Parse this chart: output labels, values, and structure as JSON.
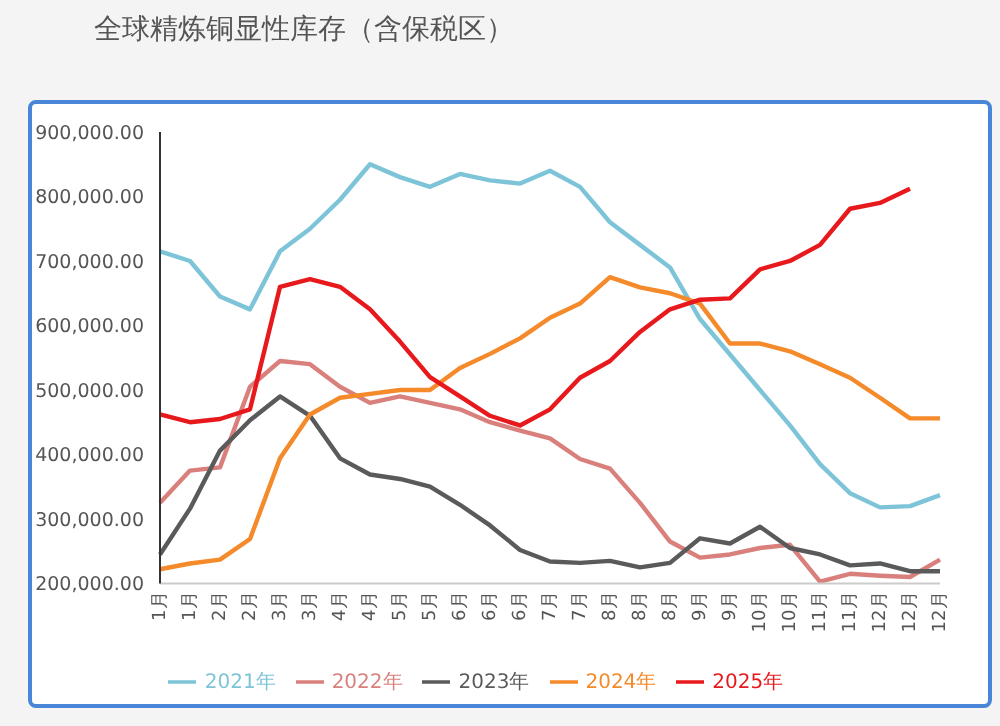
{
  "chart_data": {
    "type": "line",
    "title": "全球精炼铜显性库存（含保税区）",
    "categories": [
      "1月",
      "1月",
      "2月",
      "2月",
      "3月",
      "3月",
      "4月",
      "4月",
      "5月",
      "5月",
      "6月",
      "6月",
      "6月",
      "7月",
      "7月",
      "8月",
      "8月",
      "8月",
      "9月",
      "9月",
      "10月",
      "10月",
      "11月",
      "11月",
      "12月",
      "12月",
      "12月"
    ],
    "series": [
      {
        "name": "2021年",
        "color": "#7ec4d8",
        "values": [
          715000,
          700000,
          645000,
          625000,
          715000,
          750000,
          795000,
          850000,
          830000,
          815000,
          835000,
          825000,
          820000,
          840000,
          815000,
          760000,
          725000,
          690000,
          610000,
          555000,
          500000,
          445000,
          385000,
          340000,
          318000,
          320000,
          337000
        ]
      },
      {
        "name": "2022年",
        "color": "#d9807c",
        "values": [
          325000,
          375000,
          380000,
          505000,
          545000,
          540000,
          505000,
          480000,
          490000,
          480000,
          470000,
          450000,
          437000,
          425000,
          393000,
          378000,
          325000,
          265000,
          240000,
          245000,
          255000,
          260000,
          203000,
          215000,
          212000,
          210000,
          237000
        ]
      },
      {
        "name": "2023年",
        "color": "#5a5a5a",
        "values": [
          245000,
          316000,
          406000,
          453000,
          490000,
          460000,
          394000,
          369000,
          362000,
          350000,
          322000,
          290000,
          252000,
          234000,
          232000,
          235000,
          225000,
          232000,
          270000,
          262000,
          288000,
          255000,
          245000,
          228000,
          231000,
          219000,
          219000
        ]
      },
      {
        "name": "2024年",
        "color": "#f58a2a",
        "values": [
          222000,
          231000,
          237000,
          269000,
          394000,
          462000,
          488000,
          494000,
          500000,
          500000,
          534000,
          556000,
          580000,
          612000,
          634000,
          675000,
          659000,
          650000,
          634000,
          572000,
          572000,
          560000,
          540000,
          519000,
          488000,
          456000,
          456000
        ]
      },
      {
        "name": "2025年",
        "color": "#e8191c",
        "values": [
          462000,
          450000,
          455000,
          470000,
          660000,
          672000,
          660000,
          625000,
          575000,
          520000,
          490000,
          460000,
          445000,
          470000,
          519000,
          545000,
          590000,
          625000,
          640000,
          642000,
          687000,
          700000,
          725000,
          781000,
          790000,
          812000,
          null
        ]
      }
    ],
    "ylim": [
      200000,
      900000
    ],
    "yticks": [
      {
        "value": 200000,
        "label": "200,000.00"
      },
      {
        "value": 300000,
        "label": "300,000.00"
      },
      {
        "value": 400000,
        "label": "400,000.00"
      },
      {
        "value": 500000,
        "label": "500,000.00"
      },
      {
        "value": 600000,
        "label": "600,000.00"
      },
      {
        "value": 700000,
        "label": "700,000.00"
      },
      {
        "value": 800000,
        "label": "800,000.00"
      },
      {
        "value": 900000,
        "label": "900,000.00"
      }
    ],
    "grid": false,
    "legend": "bottom",
    "marker": "none",
    "line_style": "solid"
  }
}
